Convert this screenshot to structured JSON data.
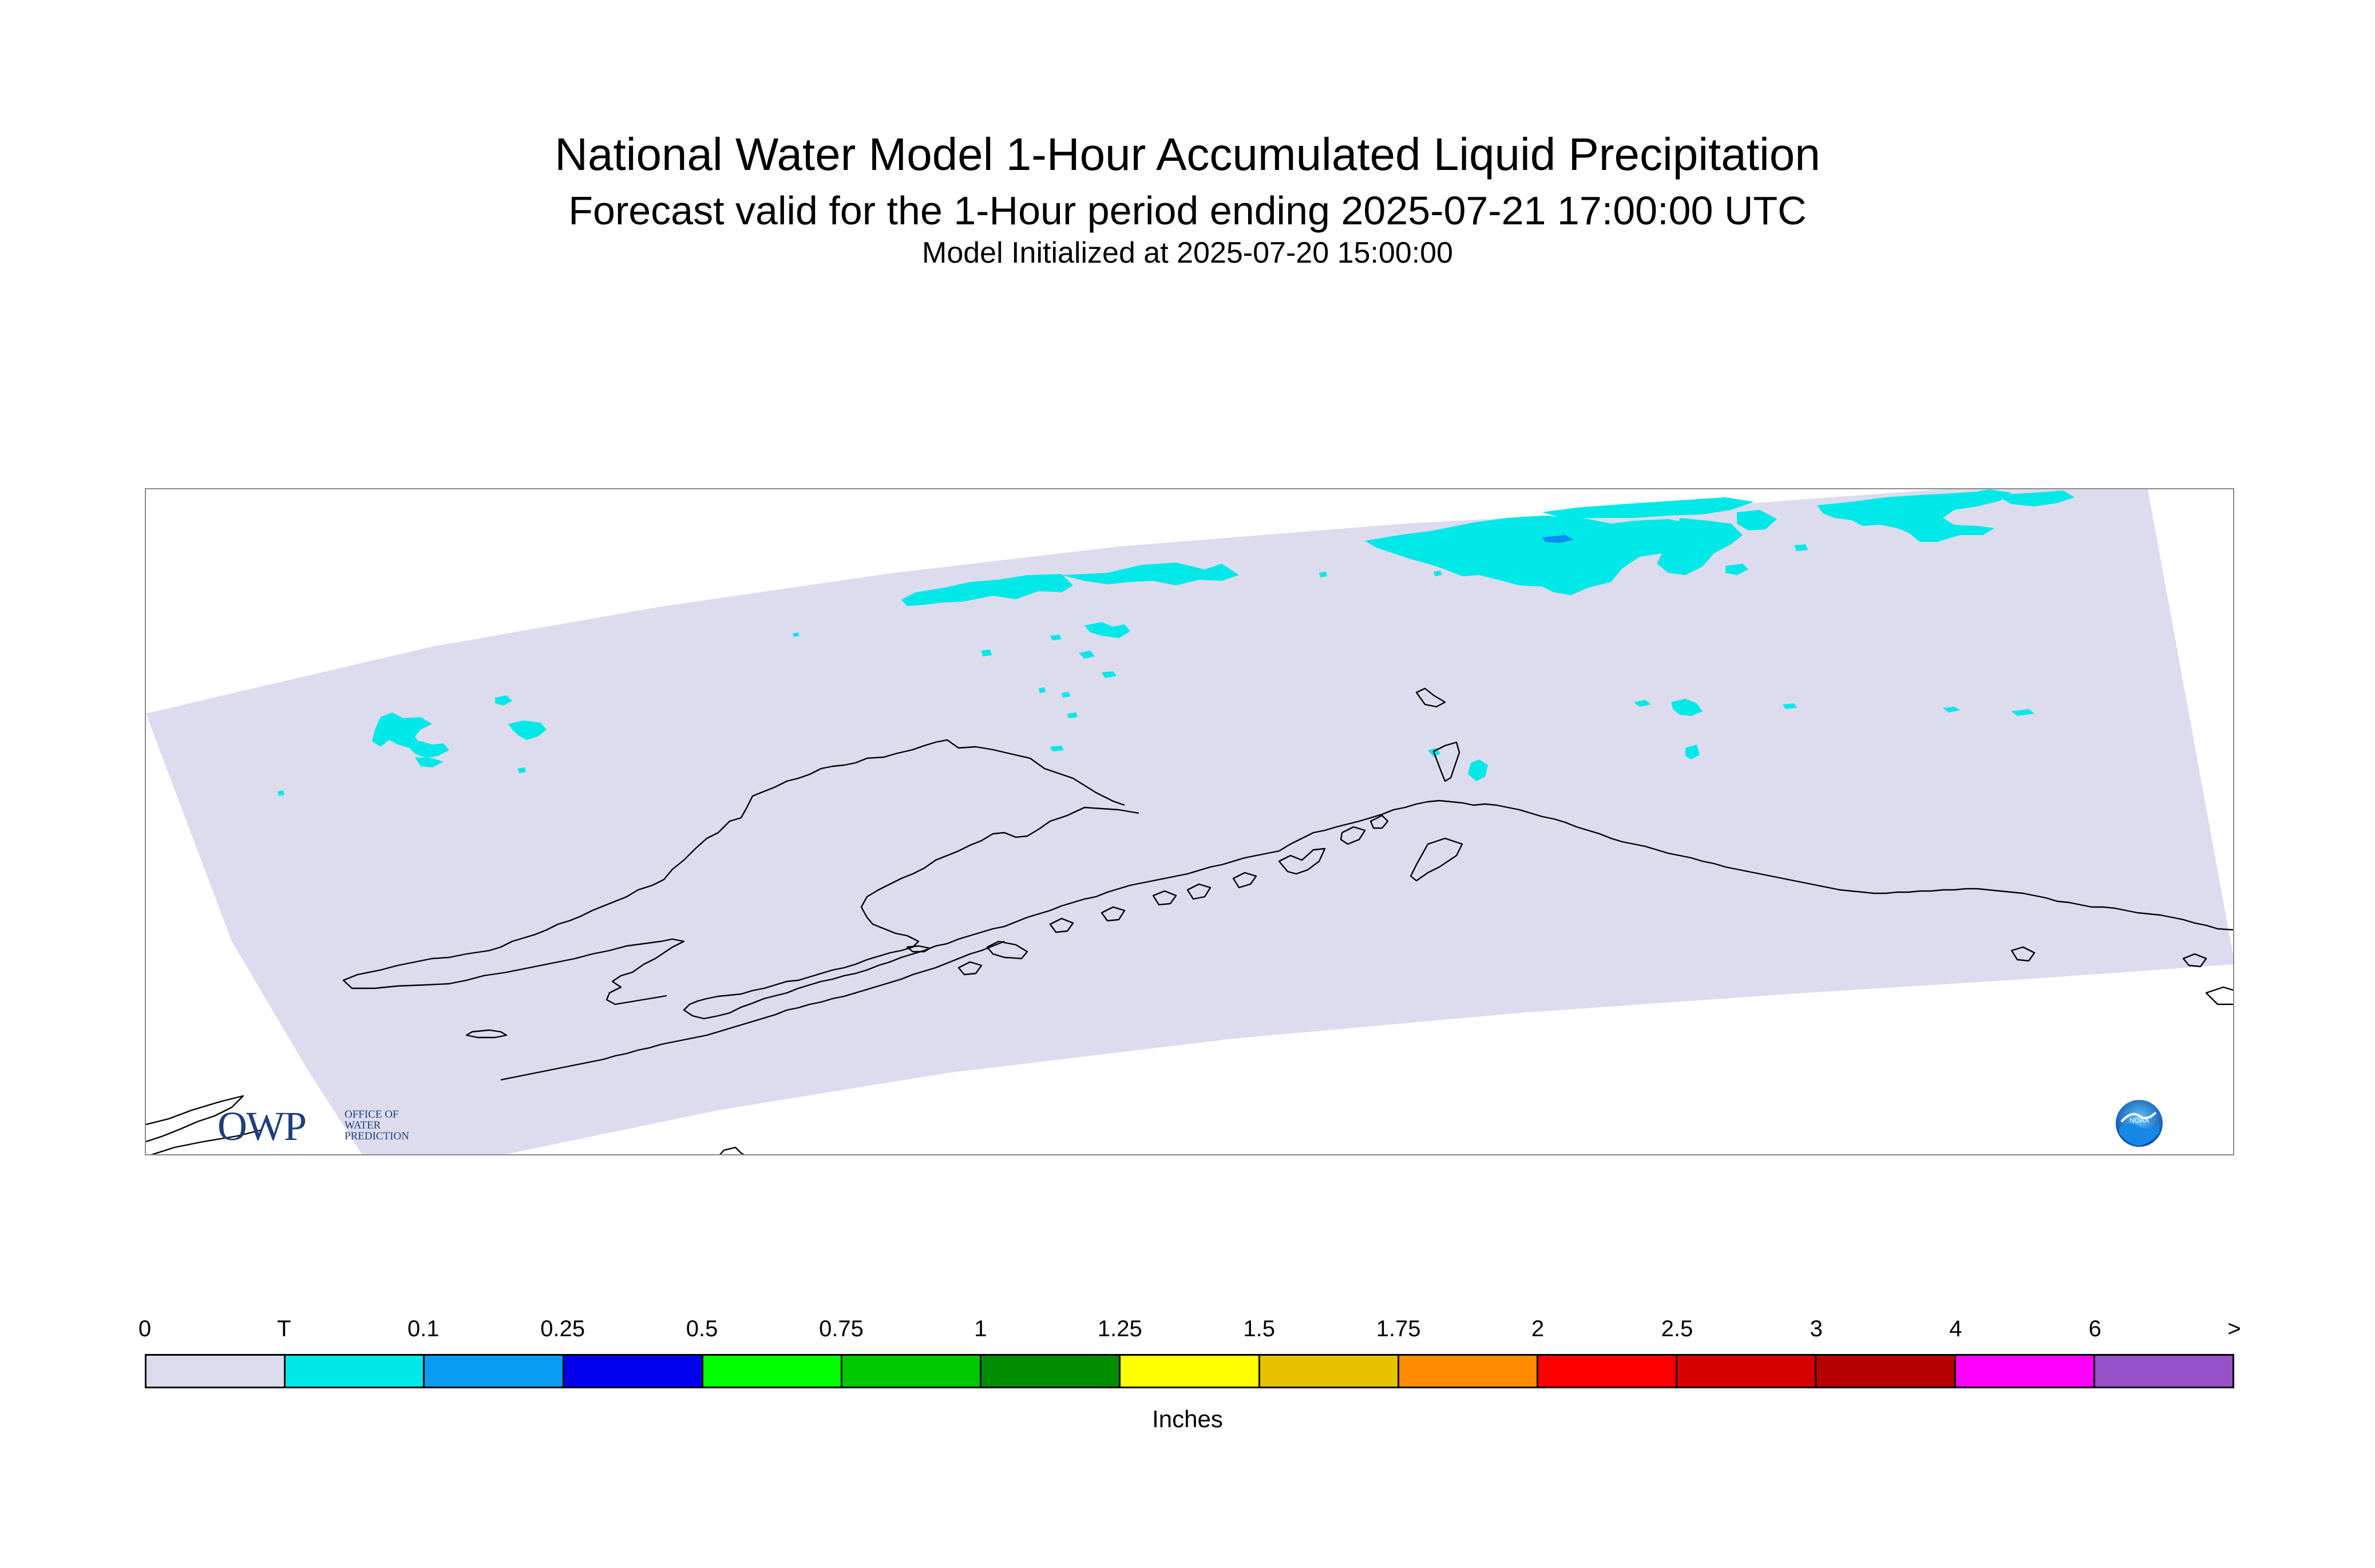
{
  "header": {
    "title": "National Water Model 1-Hour Accumulated Liquid Precipitation",
    "subtitle": "Forecast valid for the 1-Hour period ending 2025-07-21 17:00:00 UTC",
    "initialized": "Model Initialized at 2025-07-20 15:00:00"
  },
  "map": {
    "domain_color": "#dcdcee",
    "coastline_color": "#000000",
    "trace_color": "#00e8e8",
    "light_color": "#0a8cf0"
  },
  "logos": {
    "owp": {
      "letters": "OWP",
      "line1": "OFFICE OF",
      "line2": "WATER",
      "line3": "PREDICTION"
    },
    "noaa": {
      "icon": "noaa-logo-icon",
      "label": "NOAA"
    }
  },
  "legend": {
    "tick_labels": [
      "0",
      "T",
      "0.1",
      "0.25",
      "0.5",
      "0.75",
      "1",
      "1.25",
      "1.5",
      "1.75",
      "2",
      "2.5",
      "3",
      "4",
      "6",
      ">"
    ],
    "colors": [
      "#dcdcee",
      "#00e8e8",
      "#0a9cf0",
      "#0000ee",
      "#00ff00",
      "#00c800",
      "#008c00",
      "#ffff00",
      "#e6c200",
      "#ff8c00",
      "#ff0000",
      "#d70000",
      "#b40000",
      "#ff00ff",
      "#9650c8"
    ],
    "units": "Inches"
  }
}
